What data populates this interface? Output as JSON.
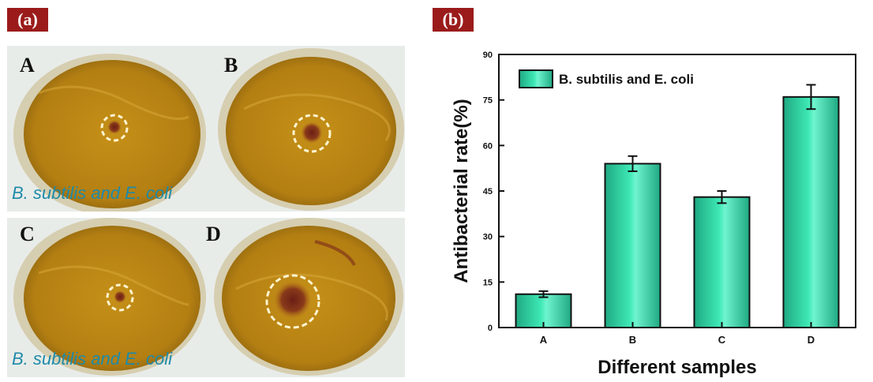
{
  "panels": {
    "a_label": "(a)",
    "b_label": "(b)"
  },
  "photos": {
    "plates": [
      {
        "letter": "A"
      },
      {
        "letter": "B"
      },
      {
        "letter": "C"
      },
      {
        "letter": "D"
      }
    ],
    "caption_top": "B. subtilis and E. coli",
    "caption_bottom": "B. subtilis and E. coli",
    "colors": {
      "agar": "#c9921a",
      "dish_rim": "#d8cfa8",
      "zone_ring": "#fff4d0",
      "colony": "#7a2a1a"
    }
  },
  "chart_data": {
    "type": "bar",
    "categories": [
      "A",
      "B",
      "C",
      "D"
    ],
    "series": [
      {
        "name": "B. subtilis and E. coli",
        "values": [
          11,
          54,
          43,
          76
        ],
        "errors": [
          1,
          2.5,
          2,
          4
        ]
      }
    ],
    "xlabel": "Different samples",
    "ylabel": "Antibacterial rate(%)",
    "ylim": [
      0,
      90
    ],
    "yticks": [
      0,
      15,
      30,
      45,
      60,
      75,
      90
    ],
    "legend_position": "top-left",
    "grid": false,
    "colors": {
      "bar": "#3ee8b5",
      "bar_edge": "#111111",
      "error_bar": "#111111"
    }
  }
}
